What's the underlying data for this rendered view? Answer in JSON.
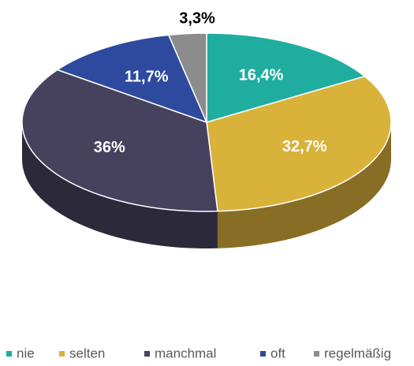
{
  "chart_data": {
    "type": "pie",
    "categories": [
      "nie",
      "selten",
      "manchmal",
      "oft",
      "regelmäßig"
    ],
    "values": [
      16.4,
      32.7,
      36,
      11.7,
      3.3
    ],
    "value_labels": [
      "16,4%",
      "32,7%",
      "36%",
      "11,7%",
      "3,3%"
    ],
    "colors": [
      "#1fada0",
      "#d9b23a",
      "#46425e",
      "#2e4a9e",
      "#8c8c8c"
    ],
    "legend": "bottom"
  }
}
